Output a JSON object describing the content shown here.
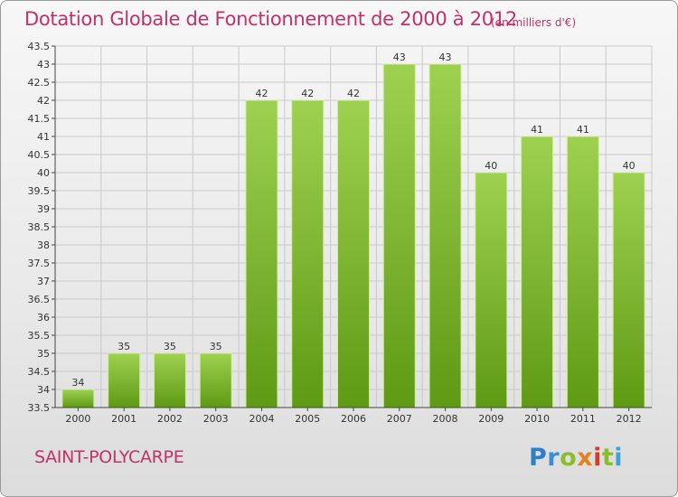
{
  "header": {
    "title": "Dotation Globale de Fonctionnement de 2000 à 2012",
    "unit_note": "(en milliers d'€)"
  },
  "footer": {
    "commune": "SAINT-POLYCARPE",
    "logo_letters": [
      "P",
      "r",
      "o",
      "x",
      "i",
      "t",
      "i"
    ]
  },
  "chart_data": {
    "type": "bar",
    "title": "Dotation Globale de Fonctionnement de 2000 à 2012",
    "subtitle": "(en milliers d'€)",
    "xlabel": "",
    "ylabel": "",
    "categories": [
      "2000",
      "2001",
      "2002",
      "2003",
      "2004",
      "2005",
      "2006",
      "2007",
      "2008",
      "2009",
      "2010",
      "2011",
      "2012"
    ],
    "values": [
      34,
      35,
      35,
      35,
      42,
      42,
      42,
      43,
      43,
      40,
      41,
      41,
      40
    ],
    "data_labels": [
      "34",
      "35",
      "35",
      "35",
      "42",
      "42",
      "42",
      "43",
      "43",
      "40",
      "41",
      "41",
      "40"
    ],
    "ylim": [
      33.5,
      43.5
    ],
    "yticks": [
      "33.5",
      "34",
      "34.5",
      "35",
      "35.5",
      "36",
      "36.5",
      "37",
      "37.5",
      "38",
      "38.5",
      "39",
      "39.5",
      "40",
      "40.5",
      "41",
      "41.5",
      "42",
      "42.5",
      "43",
      "43.5"
    ],
    "grid": true,
    "legend": "none",
    "colors": {
      "bar_top": "#9fd151",
      "bar_bottom": "#5e9a14",
      "bar_edge": "#d2ec9c",
      "grid": "#c9c9c9",
      "axis": "#444444",
      "title": "#c0326a"
    }
  }
}
